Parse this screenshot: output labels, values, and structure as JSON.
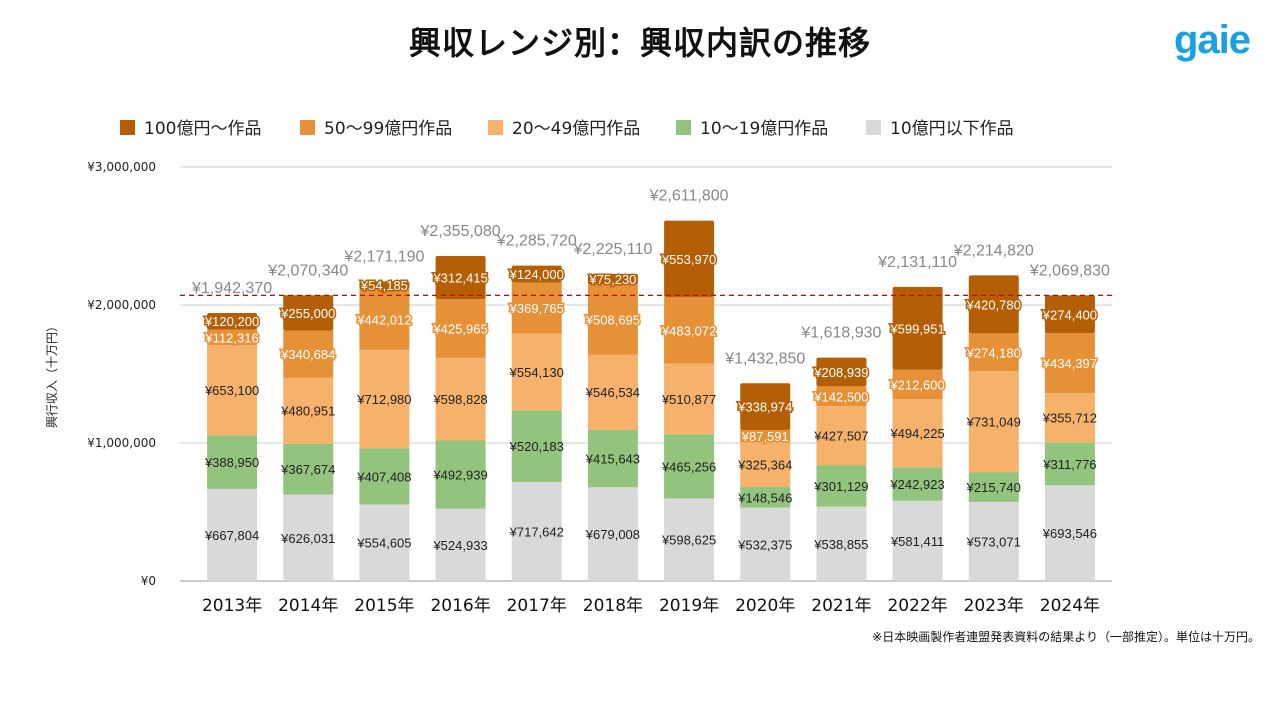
{
  "title": "興収レンジ別：興収内訳の推移",
  "logo": "gaie",
  "note": "※日本映画製作者連盟発表資料の結果より（一部推定）。単位は十万円。",
  "chart_data": {
    "type": "bar",
    "stacked": true,
    "title": "",
    "xlabel": "",
    "ylabel": "興行収入（十万円）",
    "ylim": [
      0,
      3000000
    ],
    "yticks": [
      0,
      1000000,
      2000000,
      3000000
    ],
    "ytick_labels": [
      "¥0",
      "¥1,000,000",
      "¥2,000,000",
      "¥3,000,000"
    ],
    "grid": true,
    "legend": "top",
    "reference_line": {
      "value": 2069830,
      "color": "#cc0000",
      "style": "dashed"
    },
    "categories": [
      "2013年",
      "2014年",
      "2015年",
      "2016年",
      "2017年",
      "2018年",
      "2019年",
      "2020年",
      "2021年",
      "2022年",
      "2023年",
      "2024年"
    ],
    "series": [
      {
        "name": "10億円以下作品",
        "color": "#d9d9d9",
        "values": [
          667804,
          626031,
          554605,
          524933,
          717642,
          679008,
          598625,
          532375,
          538855,
          581411,
          573071,
          693546
        ]
      },
      {
        "name": "10〜19億円作品",
        "color": "#93c47d",
        "values": [
          388950,
          367674,
          407408,
          492939,
          520183,
          415643,
          465256,
          148546,
          301129,
          242923,
          215740,
          311776
        ]
      },
      {
        "name": "20〜49億円作品",
        "color": "#f6b26b",
        "values": [
          653100,
          480951,
          712980,
          598828,
          554130,
          546534,
          510877,
          325364,
          427507,
          494225,
          731049,
          355712
        ]
      },
      {
        "name": "50〜99億円作品",
        "color": "#e69138",
        "values": [
          112316,
          340684,
          442012,
          425965,
          369765,
          508695,
          483072,
          87591,
          142500,
          212600,
          274180,
          434397
        ]
      },
      {
        "name": "100億円〜作品",
        "color": "#b45f06",
        "values": [
          120200,
          255000,
          54185,
          312415,
          124000,
          75230,
          553970,
          338974,
          208939,
          599951,
          420780,
          274400
        ]
      }
    ],
    "totals": [
      1942370,
      2070340,
      2171190,
      2355080,
      2285720,
      2225110,
      2611800,
      1432850,
      1618930,
      2131110,
      2214820,
      2069830
    ]
  }
}
